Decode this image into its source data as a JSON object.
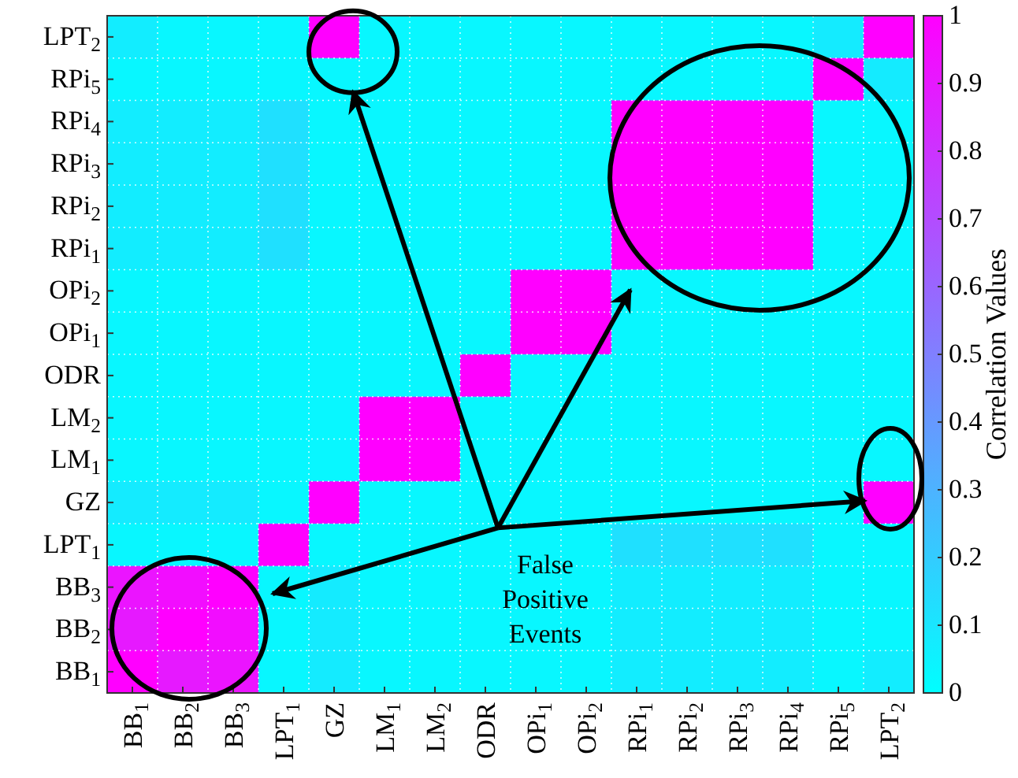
{
  "chart_data": {
    "type": "heatmap",
    "clabel": "Correlation Values",
    "grid": true,
    "categories": [
      "BB$_{1}$",
      "BB$_{2}$",
      "BB$_{3}$",
      "LPT$_{1}$",
      "GZ",
      "LM$_{1}$",
      "LM$_{2}$",
      "ODR",
      "OPi$_{1}$",
      "OPi$_{2}$",
      "RPi$_{1}$",
      "RPi$_{2}$",
      "RPi$_{3}$",
      "RPi$_{4}$",
      "RPi$_{5}$",
      "LPT$_{2}$"
    ],
    "y_categories": [
      "LPT$_{2}$",
      "RPi$_{5}$",
      "RPi$_{4}$",
      "RPi$_{3}$",
      "RPi$_{2}$",
      "RPi$_{1}$",
      "OPi$_{2}$",
      "OPi$_{1}$",
      "ODR",
      "LM$_{2}$",
      "LM$_{1}$",
      "GZ",
      "LPT$_{1}$",
      "BB$_{3}$",
      "BB$_{2}$",
      "BB$_{1}$"
    ],
    "cells": [
      [
        0.07,
        0.03,
        0.03,
        0.03,
        1,
        0.03,
        0.03,
        0.03,
        0.03,
        0.03,
        0.03,
        0.03,
        0.03,
        0.03,
        0.08,
        1
      ],
      [
        0.03,
        0.03,
        0.03,
        0.03,
        0.03,
        0.03,
        0.03,
        0.03,
        0.03,
        0.03,
        0.03,
        0.03,
        0.03,
        0.03,
        1,
        0.08
      ],
      [
        0.07,
        0.07,
        0.07,
        0.12,
        0.03,
        0.03,
        0.03,
        0.03,
        0.03,
        0.03,
        1,
        1,
        1,
        1,
        0.03,
        0.03
      ],
      [
        0.07,
        0.07,
        0.07,
        0.12,
        0.03,
        0.03,
        0.03,
        0.03,
        0.03,
        0.03,
        1,
        1,
        1,
        1,
        0.03,
        0.03
      ],
      [
        0.07,
        0.07,
        0.07,
        0.12,
        0.03,
        0.03,
        0.03,
        0.03,
        0.03,
        0.03,
        1,
        1,
        1,
        1,
        0.03,
        0.03
      ],
      [
        0.07,
        0.07,
        0.07,
        0.12,
        0.03,
        0.03,
        0.03,
        0.03,
        0.03,
        0.03,
        1,
        1,
        1,
        1,
        0.03,
        0.03
      ],
      [
        0.03,
        0.03,
        0.03,
        0.03,
        0.03,
        0.03,
        0.03,
        0.03,
        1,
        1,
        0.03,
        0.03,
        0.03,
        0.03,
        0.03,
        0.03
      ],
      [
        0.03,
        0.03,
        0.03,
        0.03,
        0.03,
        0.03,
        0.03,
        0.03,
        1,
        1,
        0.03,
        0.03,
        0.03,
        0.03,
        0.03,
        0.03
      ],
      [
        0.03,
        0.03,
        0.03,
        0.03,
        0.03,
        0.03,
        0.03,
        1,
        0.03,
        0.03,
        0.03,
        0.03,
        0.03,
        0.03,
        0.03,
        0.03
      ],
      [
        0.03,
        0.03,
        0.03,
        0.03,
        0.03,
        1,
        1,
        0.03,
        0.03,
        0.03,
        0.03,
        0.03,
        0.03,
        0.03,
        0.03,
        0.03
      ],
      [
        0.03,
        0.03,
        0.03,
        0.03,
        0.03,
        1,
        1,
        0.03,
        0.03,
        0.03,
        0.03,
        0.03,
        0.03,
        0.03,
        0.03,
        0.03
      ],
      [
        0.08,
        0.08,
        0.08,
        0.03,
        1,
        0.03,
        0.03,
        0.03,
        0.03,
        0.03,
        0.03,
        0.03,
        0.03,
        0.03,
        0.03,
        1
      ],
      [
        0.03,
        0.03,
        0.03,
        1,
        0.03,
        0.03,
        0.03,
        0.03,
        0.03,
        0.03,
        0.12,
        0.12,
        0.12,
        0.12,
        0.03,
        0.03
      ],
      [
        0.92,
        0.95,
        1,
        0.03,
        0.08,
        0.03,
        0.03,
        0.03,
        0.03,
        0.03,
        0.07,
        0.07,
        0.07,
        0.07,
        0.03,
        0.03
      ],
      [
        0.9,
        1,
        0.95,
        0.03,
        0.08,
        0.03,
        0.03,
        0.03,
        0.03,
        0.03,
        0.07,
        0.07,
        0.07,
        0.07,
        0.03,
        0.03
      ],
      [
        1,
        0.9,
        0.92,
        0.03,
        0.08,
        0.03,
        0.03,
        0.03,
        0.03,
        0.03,
        0.07,
        0.07,
        0.07,
        0.07,
        0.03,
        0.07
      ]
    ],
    "clim": [
      0,
      1
    ],
    "cticks": [
      0,
      0.1,
      0.2,
      0.3,
      0.4,
      0.5,
      0.6,
      0.7,
      0.8,
      0.9,
      1
    ],
    "annotations": [
      "False Positive Events"
    ]
  }
}
